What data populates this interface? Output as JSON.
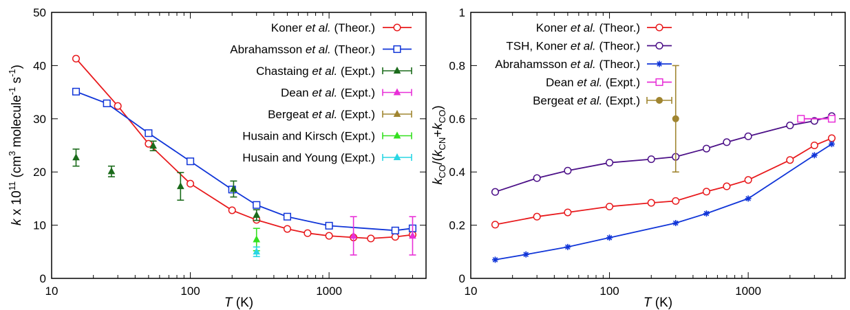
{
  "colors": {
    "koner": "#e8191c",
    "abrahamsson": "#1035d8",
    "tsh": "#4b0f87",
    "chastaing": "#1b6b1b",
    "dean": "#e82fd7",
    "bergeat": "#a08530",
    "husain_kirsch": "#33e01f",
    "husain_young": "#29d6e4"
  },
  "chart_data": [
    {
      "type": "scatter",
      "x_scale": "log",
      "xlim": [
        10,
        5000
      ],
      "ylim": [
        0,
        50
      ],
      "grid": false,
      "legend_position": "top-right",
      "xlabel": {
        "italic": "T",
        "rest": " (K)"
      },
      "ylabel": {
        "k": "k",
        "times": " x 10",
        "exp": "11",
        "unit_a": " (cm",
        "unit_b": "3",
        "unit_c": " molecule",
        "unit_d": "-1",
        "unit_e": " s",
        "unit_f": "-1",
        "unit_g": ")"
      },
      "x_ticks": [
        10,
        100,
        1000
      ],
      "x_tick_labels": [
        "10",
        "100",
        "1000"
      ],
      "y_ticks": [
        0,
        10,
        20,
        30,
        40,
        50
      ],
      "y_tick_labels": [
        "0",
        "10",
        "20",
        "30",
        "40",
        "50"
      ],
      "series": [
        {
          "id": "koner",
          "legend": {
            "a": "Koner ",
            "b": "et al.",
            "c": " (Theor.)"
          },
          "style": "line",
          "marker": "circle",
          "x": [
            15,
            30,
            50,
            100,
            200,
            300,
            500,
            700,
            1000,
            1500,
            2000,
            3000,
            4000
          ],
          "y": [
            41.3,
            32.4,
            25.3,
            17.8,
            12.8,
            11.0,
            9.3,
            8.5,
            8.0,
            7.7,
            7.5,
            7.8,
            8.2
          ]
        },
        {
          "id": "abrahamsson",
          "legend": {
            "a": "Abrahamsson ",
            "b": "et al.",
            "c": " (Theor.)"
          },
          "style": "line",
          "marker": "square",
          "x": [
            15,
            25,
            50,
            100,
            200,
            300,
            500,
            1000,
            3000,
            4000
          ],
          "y": [
            35.1,
            32.9,
            27.3,
            22.0,
            16.7,
            13.8,
            11.6,
            9.9,
            9.0,
            9.4
          ]
        },
        {
          "id": "chastaing",
          "legend": {
            "a": "Chastaing ",
            "b": "et al.",
            "c": " (Expt.)"
          },
          "style": "errorbar",
          "marker": "triangle",
          "x": [
            15,
            27,
            54,
            85,
            205,
            300
          ],
          "y": [
            22.7,
            20.1,
            24.9,
            17.3,
            16.8,
            11.9
          ],
          "err": [
            1.6,
            1.0,
            0.9,
            2.6,
            1.5,
            1.0
          ]
        },
        {
          "id": "dean",
          "legend": {
            "a": "Dean ",
            "b": "et al.",
            "c": " (Expt.)"
          },
          "style": "errorbar",
          "marker": "triangle",
          "x": [
            1500,
            4000
          ],
          "y": [
            8.0,
            8.0
          ],
          "err": [
            3.6,
            3.6
          ]
        },
        {
          "id": "bergeat",
          "legend": {
            "a": "Bergeat ",
            "b": "et al.",
            "c": " (Expt.)"
          },
          "style": "errorbar",
          "marker": "triangle",
          "x": [],
          "y": [],
          "err": []
        },
        {
          "id": "husain_kirsch",
          "legend": {
            "a": "Husain and Kirsch (Expt.)",
            "b": "",
            "c": ""
          },
          "style": "errorbar",
          "marker": "triangle",
          "x": [
            300
          ],
          "y": [
            7.3
          ],
          "err": [
            2.1
          ]
        },
        {
          "id": "husain_young",
          "legend": {
            "a": "Husain and Young (Expt.)",
            "b": "",
            "c": ""
          },
          "style": "errorbar",
          "marker": "triangle",
          "x": [
            300
          ],
          "y": [
            5.0
          ],
          "err": [
            0.9
          ]
        }
      ]
    },
    {
      "type": "scatter",
      "x_scale": "log",
      "xlim": [
        10,
        5000
      ],
      "ylim": [
        0,
        1
      ],
      "grid": false,
      "legend_position": "top-right",
      "xlabel": {
        "italic": "T",
        "rest": " (K)"
      },
      "ylabel": {
        "k1": "k",
        "s1": "CO",
        "mid": "/(",
        "k2": "k",
        "s2": "CN",
        "plus": "+",
        "k3": "k",
        "s3": "CO",
        "end": ")"
      },
      "x_ticks": [
        10,
        100,
        1000
      ],
      "x_tick_labels": [
        "10",
        "100",
        "1000"
      ],
      "y_ticks": [
        0,
        0.2,
        0.4,
        0.6,
        0.8,
        1
      ],
      "y_tick_labels": [
        "0",
        "0.2",
        "0.4",
        "0.6",
        "0.8",
        "1"
      ],
      "series": [
        {
          "id": "koner",
          "legend": {
            "a": "Koner ",
            "b": "et al.",
            "c": " (Theor.)"
          },
          "style": "line",
          "marker": "circle",
          "x": [
            15,
            30,
            50,
            100,
            200,
            300,
            500,
            700,
            1000,
            2000,
            3000,
            4000
          ],
          "y": [
            0.202,
            0.232,
            0.248,
            0.27,
            0.284,
            0.291,
            0.326,
            0.346,
            0.37,
            0.445,
            0.5,
            0.527
          ]
        },
        {
          "id": "tsh",
          "legend": {
            "a": "TSH, Koner ",
            "b": "et al.",
            "c": " (Theor.)"
          },
          "style": "line",
          "marker": "circle",
          "x": [
            15,
            30,
            50,
            100,
            200,
            300,
            500,
            700,
            1000,
            2000,
            3000,
            4000
          ],
          "y": [
            0.325,
            0.377,
            0.405,
            0.435,
            0.448,
            0.457,
            0.488,
            0.512,
            0.534,
            0.575,
            0.592,
            0.61
          ]
        },
        {
          "id": "abrahamsson",
          "legend": {
            "a": "Abrahamsson ",
            "b": "et al.",
            "c": " (Theor.)"
          },
          "style": "line",
          "marker": "star",
          "x": [
            15,
            25,
            50,
            100,
            300,
            500,
            1000,
            3000,
            4000
          ],
          "y": [
            0.07,
            0.09,
            0.118,
            0.153,
            0.208,
            0.244,
            0.3,
            0.463,
            0.505
          ]
        },
        {
          "id": "dean",
          "legend": {
            "a": "Dean ",
            "b": "et al.",
            "c": " (Expt.)"
          },
          "style": "line",
          "marker": "square",
          "x": [
            2400,
            4000
          ],
          "y": [
            0.6,
            0.6
          ]
        },
        {
          "id": "bergeat",
          "legend": {
            "a": "Bergeat ",
            "b": "et al.",
            "c": " (Expt.)"
          },
          "style": "errorbar",
          "marker": "dot",
          "x": [
            300
          ],
          "y": [
            0.6
          ],
          "err": [
            0.2
          ]
        }
      ]
    }
  ]
}
